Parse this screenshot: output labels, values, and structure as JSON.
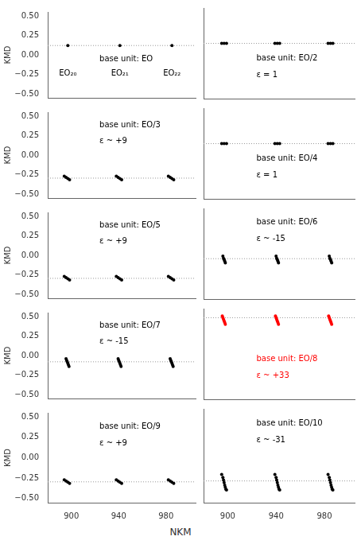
{
  "chart_data": [
    {
      "type": "scatter",
      "y_label": "KMD",
      "color": "black",
      "tick_labels": "y",
      "grid": false,
      "xlim": [
        880,
        1005
      ],
      "xticks": [
        900,
        940,
        980
      ],
      "ylim": [
        -0.55,
        0.55
      ],
      "yticks": [
        {
          "value": -0.5,
          "label": "−0.50"
        },
        {
          "value": -0.25,
          "label": "−0.25"
        },
        {
          "value": 0,
          "label": "0.00"
        },
        0.25,
        {
          "value": 0.5,
          "label": "0.50"
        }
      ],
      "annotations": [
        "base unit: EO"
      ],
      "cluster_labels": [
        {
          "text": "EO₂₀",
          "x": 897
        },
        {
          "text": "EO₂₁",
          "x": 941
        },
        {
          "text": "EO₂₂",
          "x": 985
        }
      ],
      "hline": {
        "y": 0.12,
        "line_style": "dotted"
      },
      "x": [
        897,
        941,
        985
      ],
      "values": [
        0.12,
        0.12,
        0.12
      ]
    },
    {
      "type": "scatter",
      "color": "black",
      "tick_labels": false,
      "grid": false,
      "xlim": [
        880,
        1005
      ],
      "xticks": [
        900,
        940,
        980
      ],
      "ylim": [
        -0.55,
        0.55
      ],
      "yticks": [
        {
          "value": -0.5,
          "label": "−0.50"
        },
        {
          "value": -0.25,
          "label": "−0.25"
        },
        {
          "value": 0,
          "label": "0.00"
        },
        0.25,
        {
          "value": 0.5,
          "label": "0.50"
        }
      ],
      "annotations": [
        "base unit: EO/2",
        "ε = 1"
      ],
      "hline": {
        "y": 0.12,
        "line_style": "dotted"
      },
      "x": [
        895,
        897,
        899,
        939,
        941,
        943,
        983,
        985,
        987
      ],
      "values": [
        0.12,
        0.12,
        0.12,
        0.12,
        0.12,
        0.12,
        0.12,
        0.12,
        0.12
      ]
    },
    {
      "type": "scatter",
      "y_label": "KMD",
      "color": "black",
      "tick_labels": "y",
      "grid": false,
      "xlim": [
        880,
        1005
      ],
      "xticks": [
        900,
        940,
        980
      ],
      "ylim": [
        -0.55,
        0.55
      ],
      "yticks": [
        {
          "value": -0.5,
          "label": "−0.50"
        },
        {
          "value": -0.25,
          "label": "−0.25"
        },
        {
          "value": 0,
          "label": "0.00"
        },
        0.25,
        {
          "value": 0.5,
          "label": "0.50"
        }
      ],
      "annotations": [
        "base unit: EO/3",
        "ε ~ +9"
      ],
      "hline": {
        "y": -0.295,
        "line_style": "dotted"
      },
      "x": [
        894,
        895.5,
        897,
        898.5,
        938,
        939.5,
        941,
        942.5,
        982,
        983.5,
        985,
        986.5
      ],
      "values": [
        -0.27,
        -0.285,
        -0.3,
        -0.315,
        -0.27,
        -0.285,
        -0.3,
        -0.315,
        -0.27,
        -0.285,
        -0.3,
        -0.315
      ]
    },
    {
      "type": "scatter",
      "color": "black",
      "tick_labels": false,
      "grid": false,
      "xlim": [
        880,
        1005
      ],
      "xticks": [
        900,
        940,
        980
      ],
      "ylim": [
        -0.55,
        0.55
      ],
      "yticks": [
        {
          "value": -0.5,
          "label": "−0.50"
        },
        {
          "value": -0.25,
          "label": "−0.25"
        },
        {
          "value": 0,
          "label": "0.00"
        },
        0.25,
        {
          "value": 0.5,
          "label": "0.50"
        }
      ],
      "annotations": [
        "base unit: EO/4",
        "ε = 1"
      ],
      "hline": {
        "y": 0.12,
        "line_style": "dotted"
      },
      "x": [
        895,
        897,
        899,
        939,
        941,
        943,
        983,
        985,
        987
      ],
      "values": [
        0.12,
        0.12,
        0.12,
        0.12,
        0.12,
        0.12,
        0.12,
        0.12,
        0.12
      ]
    },
    {
      "type": "scatter",
      "y_label": "KMD",
      "color": "black",
      "tick_labels": "y",
      "grid": false,
      "xlim": [
        880,
        1005
      ],
      "xticks": [
        900,
        940,
        980
      ],
      "ylim": [
        -0.55,
        0.55
      ],
      "yticks": [
        {
          "value": -0.5,
          "label": "−0.50"
        },
        {
          "value": -0.25,
          "label": "−0.25"
        },
        {
          "value": 0,
          "label": "0.00"
        },
        0.25,
        {
          "value": 0.5,
          "label": "0.50"
        }
      ],
      "annotations": [
        "base unit: EO/5",
        "ε ~ +9"
      ],
      "hline": {
        "y": -0.295,
        "line_style": "dotted"
      },
      "x": [
        894,
        895.5,
        897,
        898.5,
        938,
        939.5,
        941,
        942.5,
        982,
        983.5,
        985,
        986.5
      ],
      "values": [
        -0.27,
        -0.285,
        -0.3,
        -0.315,
        -0.27,
        -0.285,
        -0.3,
        -0.315,
        -0.27,
        -0.285,
        -0.3,
        -0.315
      ]
    },
    {
      "type": "scatter",
      "color": "black",
      "tick_labels": false,
      "grid": false,
      "xlim": [
        880,
        1005
      ],
      "xticks": [
        900,
        940,
        980
      ],
      "ylim": [
        -0.55,
        0.55
      ],
      "yticks": [
        {
          "value": -0.5,
          "label": "−0.50"
        },
        {
          "value": -0.25,
          "label": "−0.25"
        },
        {
          "value": 0,
          "label": "0.00"
        },
        0.25,
        {
          "value": 0.5,
          "label": "0.50"
        }
      ],
      "annotations": [
        "base unit: EO/6",
        "ε ~ -15"
      ],
      "hline": {
        "y": -0.06,
        "line_style": "dotted"
      },
      "x": [
        896,
        896.5,
        897,
        897.5,
        898,
        940,
        940.5,
        941,
        941.5,
        942,
        984,
        984.5,
        985,
        985.5,
        986
      ],
      "values": [
        -0.03,
        -0.055,
        -0.07,
        -0.09,
        -0.11,
        -0.03,
        -0.055,
        -0.07,
        -0.09,
        -0.11,
        -0.03,
        -0.055,
        -0.07,
        -0.09,
        -0.11
      ]
    },
    {
      "type": "scatter",
      "y_label": "KMD",
      "color": "black",
      "tick_labels": "y",
      "grid": false,
      "xlim": [
        880,
        1005
      ],
      "xticks": [
        900,
        940,
        980
      ],
      "ylim": [
        -0.55,
        0.55
      ],
      "yticks": [
        {
          "value": -0.5,
          "label": "−0.50"
        },
        {
          "value": -0.25,
          "label": "−0.25"
        },
        {
          "value": 0,
          "label": "0.00"
        },
        0.25,
        {
          "value": 0.5,
          "label": "0.50"
        }
      ],
      "annotations": [
        "base unit: EO/7",
        "ε ~ -15"
      ],
      "hline": {
        "y": -0.08,
        "line_style": "dotted"
      },
      "x": [
        895.5,
        896,
        896.5,
        897,
        897.5,
        898,
        939.5,
        940,
        940.5,
        941,
        941.5,
        942,
        983.5,
        984,
        984.5,
        985,
        985.5,
        986
      ],
      "values": [
        -0.04,
        -0.06,
        -0.08,
        -0.1,
        -0.12,
        -0.14,
        -0.04,
        -0.06,
        -0.08,
        -0.1,
        -0.12,
        -0.14,
        -0.04,
        -0.06,
        -0.08,
        -0.1,
        -0.12,
        -0.14
      ]
    },
    {
      "type": "scatter",
      "color": "red",
      "tick_labels": false,
      "grid": false,
      "xlim": [
        880,
        1005
      ],
      "xticks": [
        900,
        940,
        980
      ],
      "ylim": [
        -0.55,
        0.55
      ],
      "yticks": [
        {
          "value": -0.5,
          "label": "−0.50"
        },
        {
          "value": -0.25,
          "label": "−0.25"
        },
        {
          "value": 0,
          "label": "0.00"
        },
        0.25,
        {
          "value": 0.5,
          "label": "0.50"
        }
      ],
      "annotations": [
        "base unit: EO/8",
        "ε ~ +33"
      ],
      "hline": {
        "y": 0.44,
        "line_style": "dotted"
      },
      "x": [
        895.5,
        896,
        896.5,
        897,
        897.5,
        898,
        939.5,
        940,
        940.5,
        941,
        941.5,
        942,
        983.5,
        984,
        984.5,
        985,
        985.5,
        986
      ],
      "values": [
        0.46,
        0.44,
        0.42,
        0.4,
        0.38,
        0.36,
        0.46,
        0.44,
        0.42,
        0.4,
        0.38,
        0.36,
        0.46,
        0.44,
        0.42,
        0.4,
        0.38,
        0.36
      ]
    },
    {
      "type": "scatter",
      "x_label": "NKM",
      "y_label": "KMD",
      "color": "black",
      "tick_labels": true,
      "grid": false,
      "xlim": [
        880,
        1005
      ],
      "xticks": [
        900,
        940,
        980
      ],
      "ylim": [
        -0.55,
        0.55
      ],
      "yticks": [
        {
          "value": -0.5,
          "label": "−0.50"
        },
        {
          "value": -0.25,
          "label": "−0.25"
        },
        {
          "value": 0,
          "label": "0.00"
        },
        0.25,
        {
          "value": 0.5,
          "label": "0.50"
        }
      ],
      "annotations": [
        "base unit: EO/9",
        "ε ~ +9"
      ],
      "hline": {
        "y": -0.295,
        "line_style": "dotted"
      },
      "x": [
        894,
        895.5,
        897,
        898.5,
        938,
        939.5,
        941,
        942.5,
        982,
        983.5,
        985,
        986.5
      ],
      "values": [
        -0.27,
        -0.285,
        -0.3,
        -0.315,
        -0.27,
        -0.285,
        -0.3,
        -0.315,
        -0.27,
        -0.285,
        -0.3,
        -0.315
      ]
    },
    {
      "type": "scatter",
      "color": "black",
      "tick_labels": "x",
      "grid": false,
      "xlim": [
        880,
        1005
      ],
      "xticks": [
        900,
        940,
        980
      ],
      "ylim": [
        -0.55,
        0.55
      ],
      "yticks": [
        {
          "value": -0.5,
          "label": "−0.50"
        },
        {
          "value": -0.25,
          "label": "−0.25"
        },
        {
          "value": 0,
          "label": "0.00"
        },
        0.25,
        {
          "value": 0.5,
          "label": "0.50"
        }
      ],
      "annotations": [
        "base unit: EO/10",
        "ε ~ -31"
      ],
      "hline": {
        "y": -0.295,
        "line_style": "dotted"
      },
      "x": [
        895,
        896,
        896.5,
        897,
        897.5,
        898,
        898.5,
        899,
        939,
        940,
        940.5,
        941,
        941.5,
        942,
        942.5,
        943,
        983,
        984,
        984.5,
        985,
        985.5,
        986,
        986.5,
        987
      ],
      "values": [
        -0.22,
        -0.255,
        -0.285,
        -0.315,
        -0.345,
        -0.37,
        -0.395,
        -0.4,
        -0.22,
        -0.255,
        -0.285,
        -0.315,
        -0.345,
        -0.37,
        -0.395,
        -0.4,
        -0.22,
        -0.255,
        -0.285,
        -0.315,
        -0.345,
        -0.37,
        -0.395,
        -0.4
      ]
    }
  ]
}
